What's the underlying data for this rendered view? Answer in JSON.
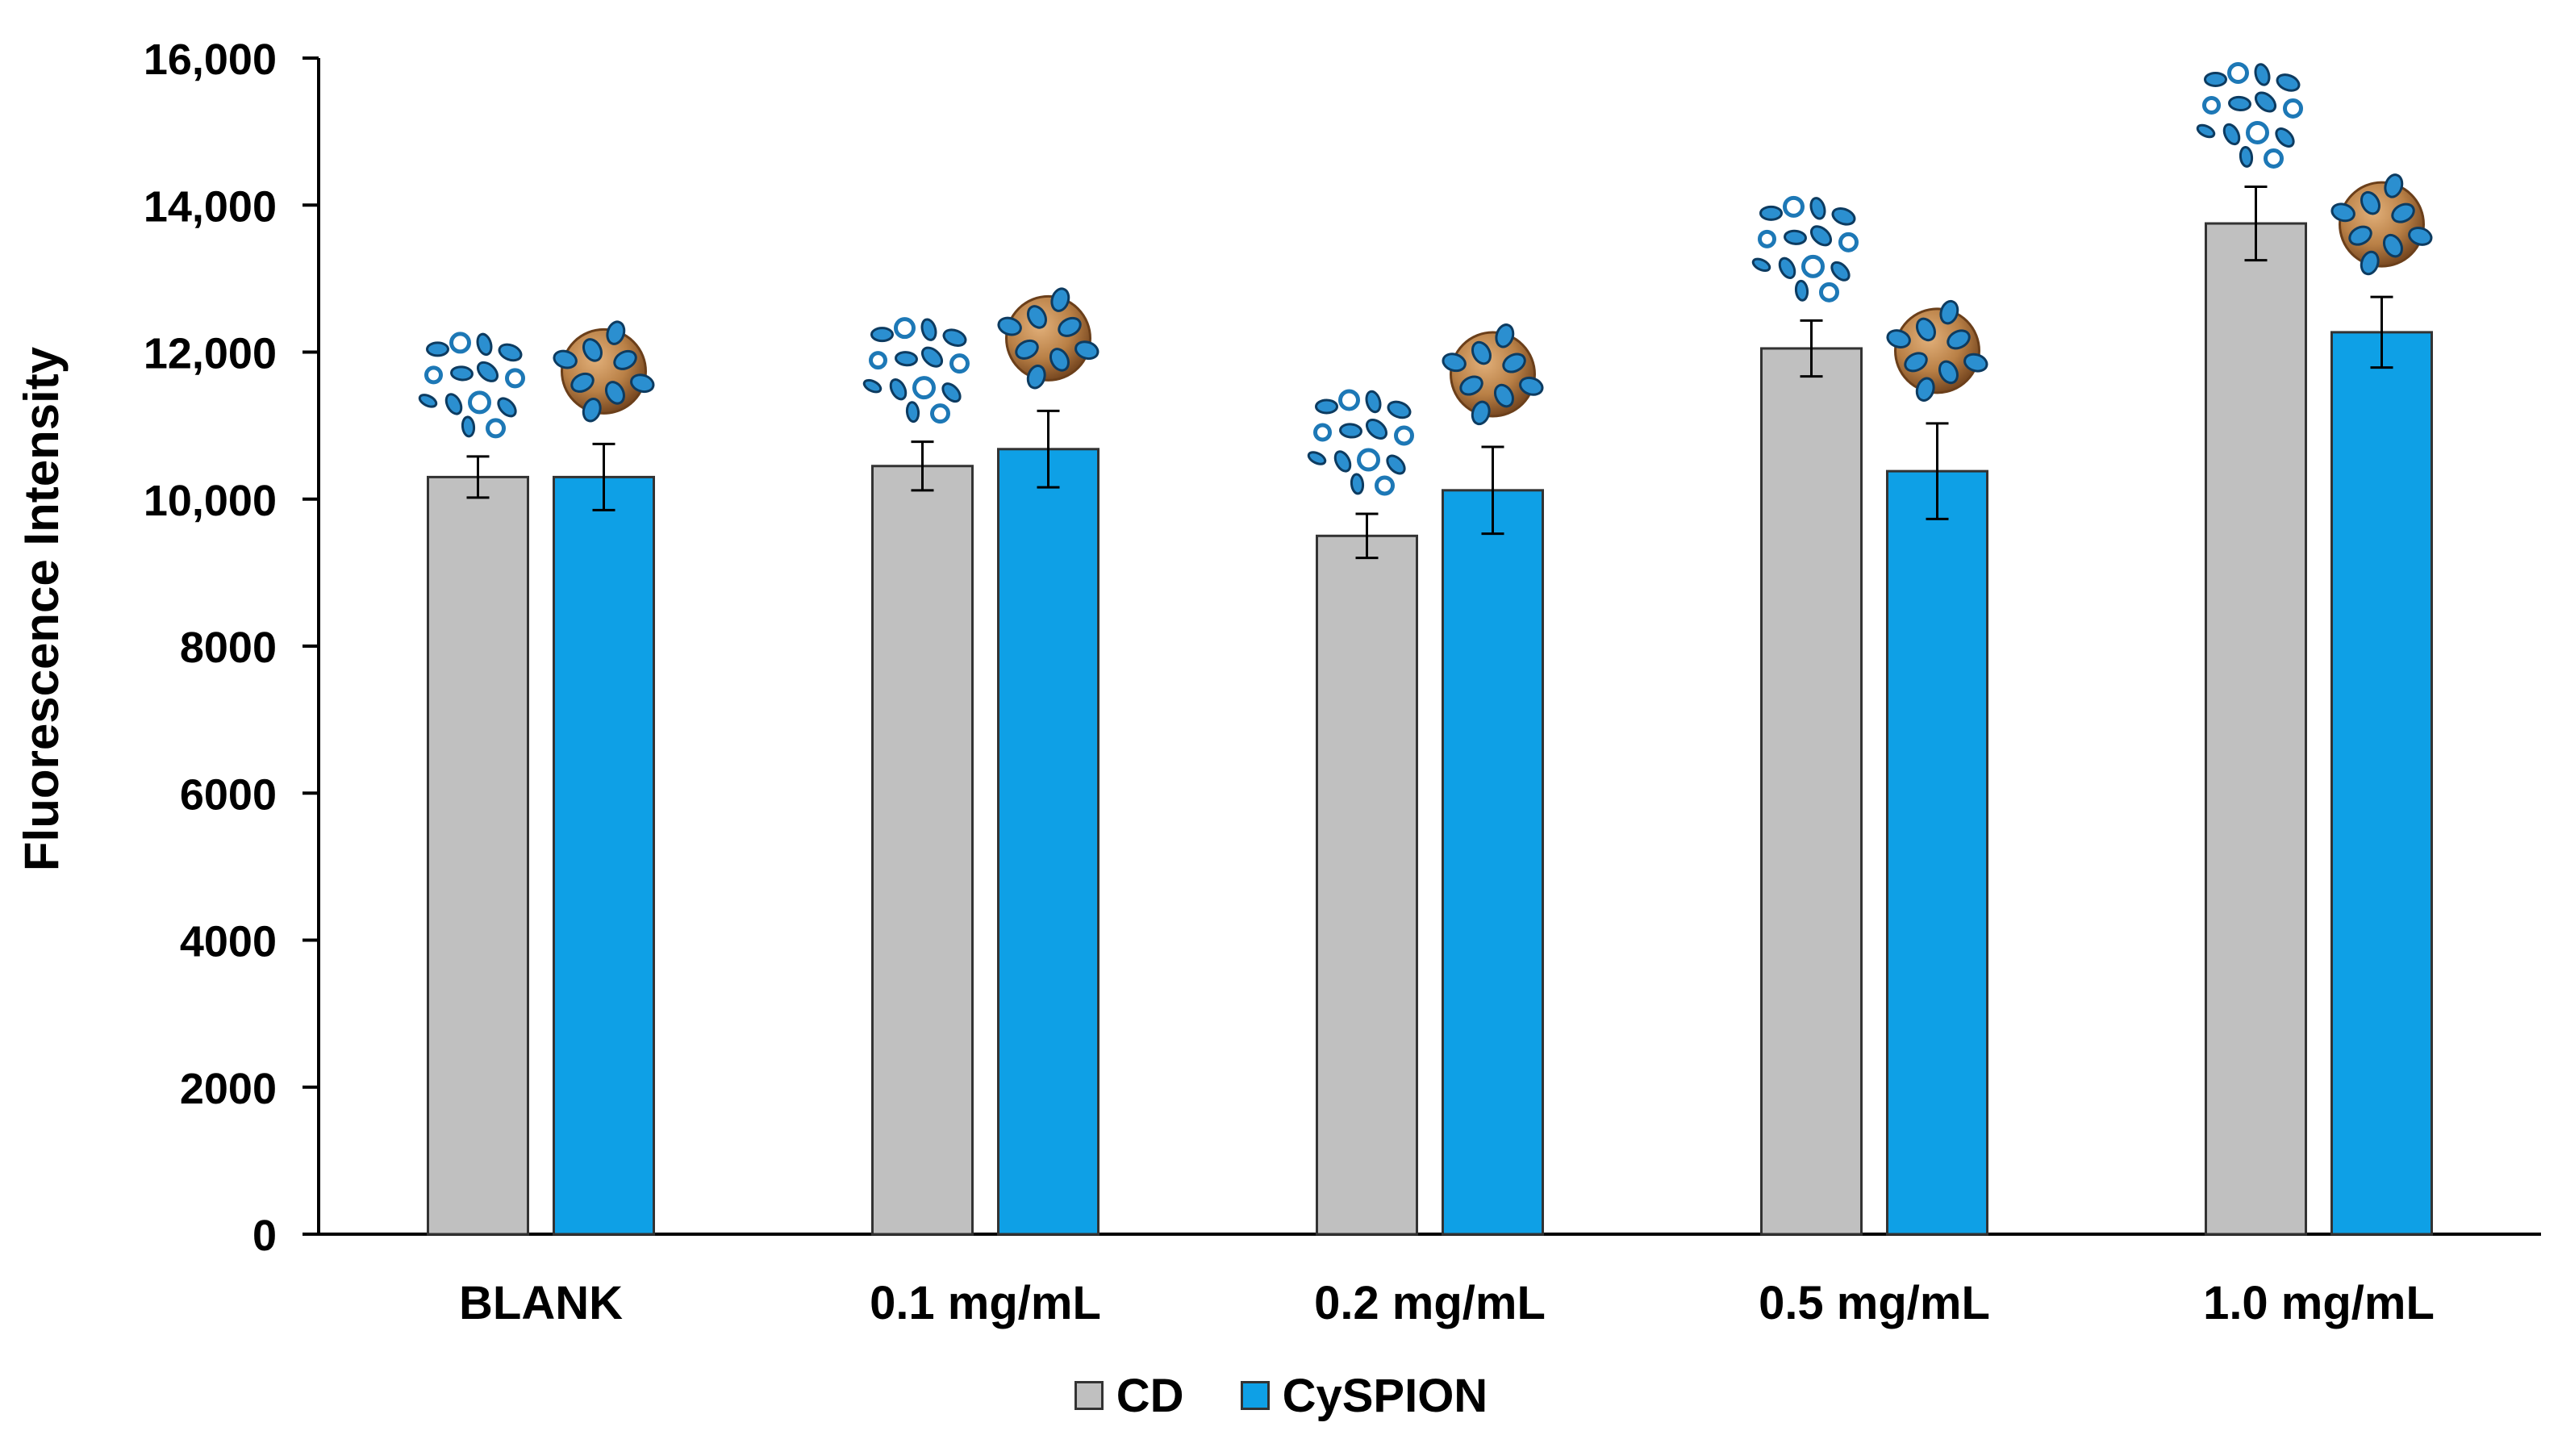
{
  "chart_data": {
    "type": "bar",
    "title": "",
    "xlabel": "",
    "ylabel": "Fluorescence Intensity",
    "ylim": [
      0,
      16000
    ],
    "yticks": [
      0,
      2000,
      4000,
      6000,
      8000,
      10000,
      12000,
      14000,
      16000
    ],
    "ytick_labels": [
      "0",
      "2000",
      "4000",
      "6000",
      "8000",
      "10,000",
      "12,000",
      "14,000",
      "16,000"
    ],
    "categories": [
      "BLANK",
      "0.1 mg/mL",
      "0.2 mg/mL",
      "0.5 mg/mL",
      "1.0 mg/mL"
    ],
    "series": [
      {
        "name": "CD",
        "color": "#c0c0c0",
        "values": [
          10300,
          10450,
          9500,
          12050,
          13750
        ],
        "errors": [
          280,
          330,
          300,
          380,
          500
        ]
      },
      {
        "name": "CySPION",
        "color": "#0ea0e6",
        "values": [
          10300,
          10680,
          10120,
          10380,
          12270
        ],
        "errors": [
          450,
          520,
          590,
          650,
          480
        ]
      }
    ],
    "legend_position": "bottom-center",
    "grid": false
  },
  "legend": {
    "cd_label": "CD",
    "cyspion_label": "CySPION"
  }
}
